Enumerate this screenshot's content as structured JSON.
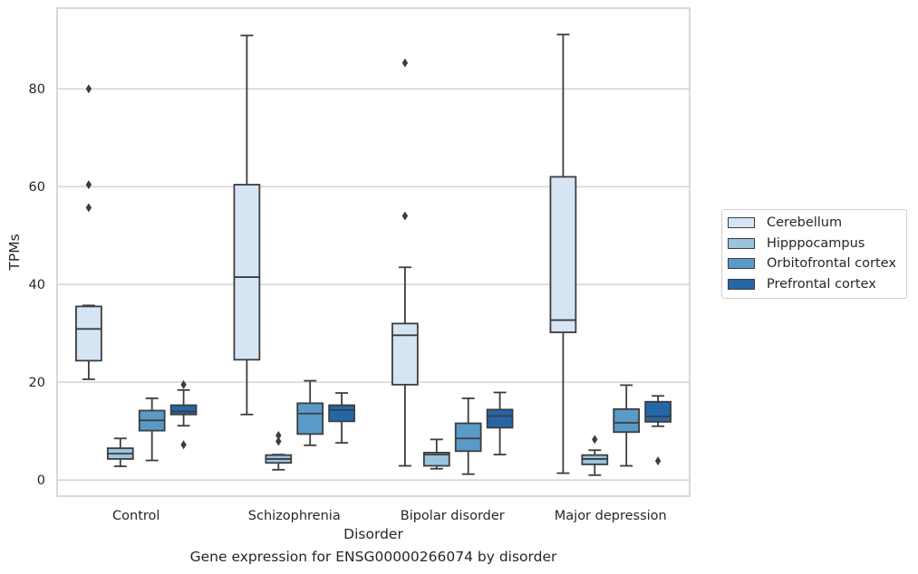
{
  "chart_data": {
    "type": "box",
    "xlabel": "Disorder",
    "ylabel": "TPMs",
    "caption": "Gene expression for ENSG00000266074 by disorder",
    "categories": [
      "Control",
      "Schizophrenia",
      "Bipolar disorder",
      "Major depression"
    ],
    "yticks": [
      0,
      20,
      40,
      60,
      80
    ],
    "ylim": [
      -3.3,
      96.5
    ],
    "grid": "horizontal",
    "legend_position": "right",
    "series": [
      {
        "name": "Cerebellum",
        "color": "#d6e5f3",
        "boxes": [
          {
            "whislo": 20.6,
            "q1": 24.4,
            "med": 30.9,
            "q3": 35.5,
            "whishi": 35.7,
            "fliers": [
              55.7,
              60.4,
              80.0
            ]
          },
          {
            "whislo": 13.4,
            "q1": 24.6,
            "med": 41.5,
            "q3": 60.4,
            "whishi": 90.9,
            "fliers": []
          },
          {
            "whislo": 2.9,
            "q1": 19.5,
            "med": 29.6,
            "q3": 32.0,
            "whishi": 43.5,
            "fliers": [
              54.0,
              85.3
            ]
          },
          {
            "whislo": 1.4,
            "q1": 30.2,
            "med": 32.7,
            "q3": 62.0,
            "whishi": 91.1,
            "fliers": []
          }
        ]
      },
      {
        "name": "Hipppocampus",
        "color": "#9ac3de",
        "boxes": [
          {
            "whislo": 2.8,
            "q1": 4.3,
            "med": 5.4,
            "q3": 6.5,
            "whishi": 8.5,
            "fliers": []
          },
          {
            "whislo": 2.1,
            "q1": 3.5,
            "med": 4.3,
            "q3": 5.1,
            "whishi": 5.2,
            "fliers": [
              7.9,
              9.1
            ]
          },
          {
            "whislo": 2.3,
            "q1": 2.9,
            "med": 5.2,
            "q3": 5.6,
            "whishi": 8.3,
            "fliers": []
          },
          {
            "whislo": 1.0,
            "q1": 3.2,
            "med": 4.3,
            "q3": 5.1,
            "whishi": 6.1,
            "fliers": [
              8.3
            ]
          }
        ]
      },
      {
        "name": "Orbitofrontal cortex",
        "color": "#5a9ac8",
        "boxes": [
          {
            "whislo": 4.0,
            "q1": 10.1,
            "med": 12.2,
            "q3": 14.2,
            "whishi": 16.7,
            "fliers": []
          },
          {
            "whislo": 7.1,
            "q1": 9.4,
            "med": 13.6,
            "q3": 15.7,
            "whishi": 20.3,
            "fliers": []
          },
          {
            "whislo": 1.2,
            "q1": 5.9,
            "med": 8.5,
            "q3": 11.6,
            "whishi": 16.7,
            "fliers": []
          },
          {
            "whislo": 2.9,
            "q1": 9.8,
            "med": 11.7,
            "q3": 14.5,
            "whishi": 19.4,
            "fliers": []
          }
        ]
      },
      {
        "name": "Prefrontal cortex",
        "color": "#2566a8",
        "boxes": [
          {
            "whislo": 11.1,
            "q1": 13.4,
            "med": 14.0,
            "q3": 15.3,
            "whishi": 18.4,
            "fliers": [
              7.2,
              19.5
            ]
          },
          {
            "whislo": 7.6,
            "q1": 12.0,
            "med": 14.3,
            "q3": 15.3,
            "whishi": 17.8,
            "fliers": []
          },
          {
            "whislo": 5.2,
            "q1": 10.7,
            "med": 13.1,
            "q3": 14.4,
            "whishi": 17.9,
            "fliers": []
          },
          {
            "whislo": 11.0,
            "q1": 11.9,
            "med": 13.0,
            "q3": 16.0,
            "whishi": 17.2,
            "fliers": [
              3.9
            ]
          }
        ]
      }
    ]
  }
}
